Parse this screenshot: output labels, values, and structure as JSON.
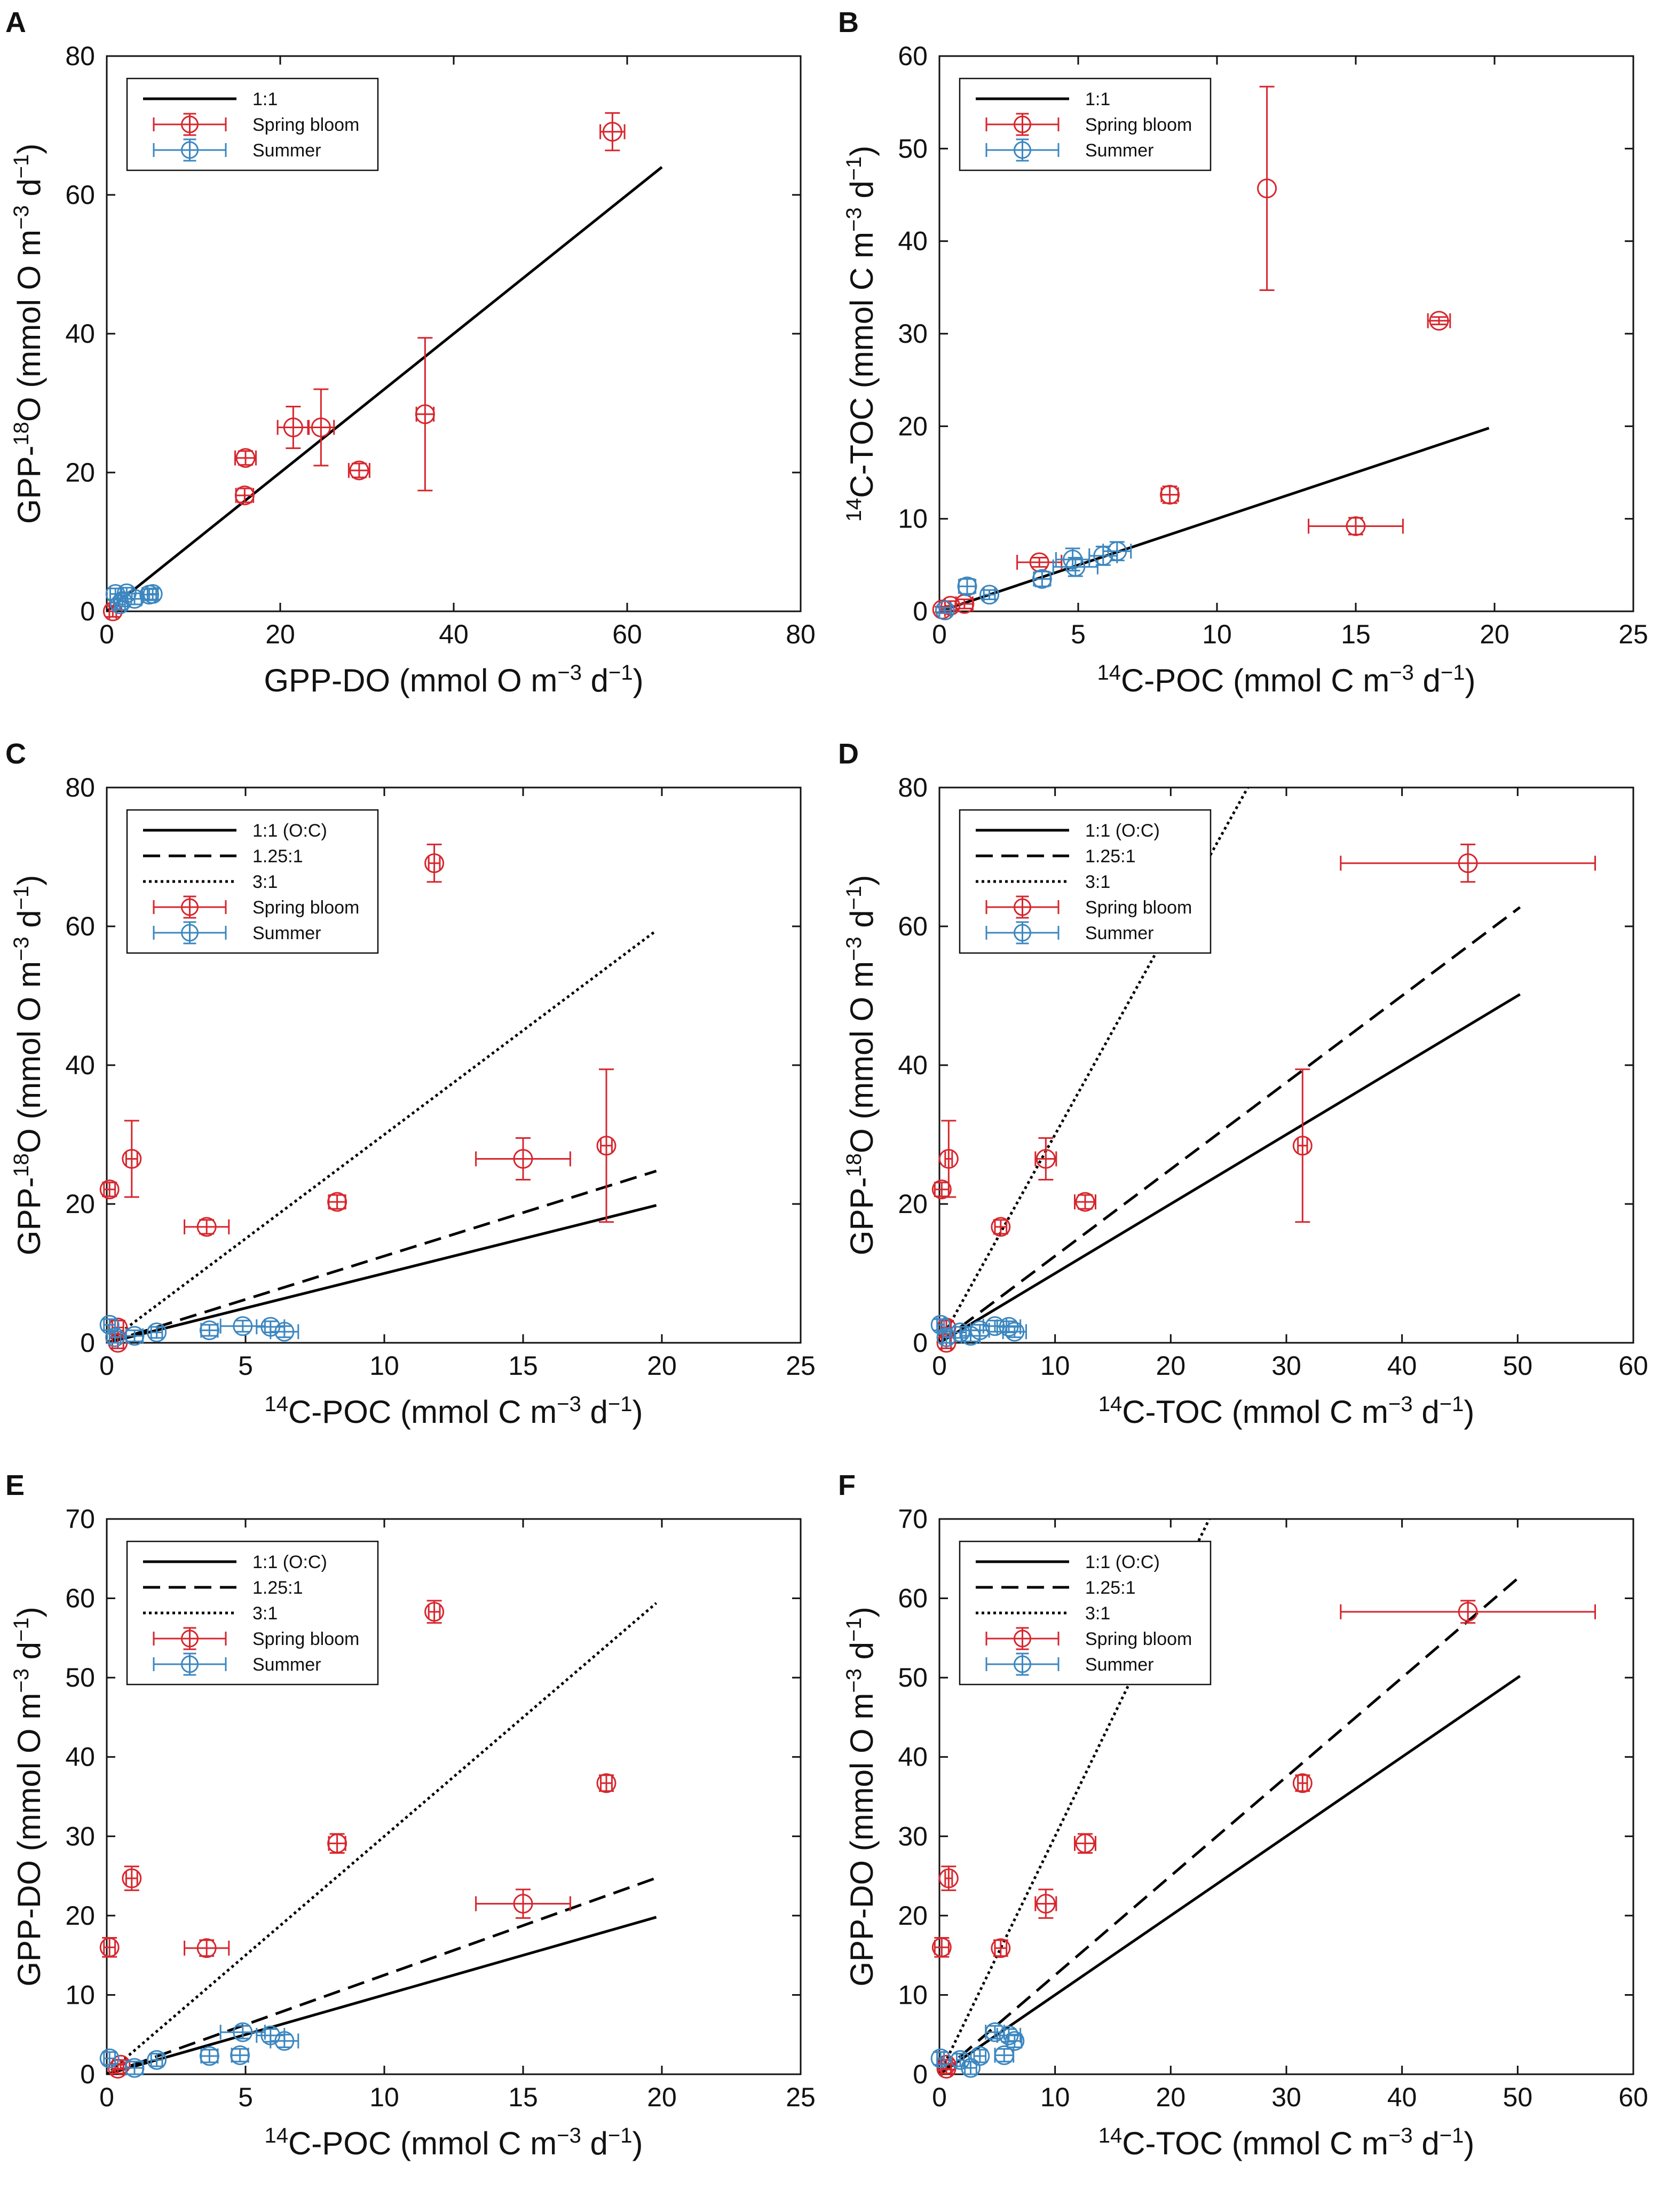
{
  "figure": {
    "colors": {
      "spring": "#d7262d",
      "summer": "#3d87c0",
      "axis": "#111111",
      "line": "#000000"
    }
  },
  "chart_data": [
    {
      "panel": "A",
      "type": "scatter",
      "xlabel": "GPP-DO (mmol O m−3 d−1)",
      "ylabel": "GPP-18O (mmol O m−3 d−1)",
      "xlim": [
        0,
        80
      ],
      "ylim": [
        0,
        80
      ],
      "xticks": [
        0,
        20,
        40,
        60,
        80
      ],
      "yticks": [
        0,
        20,
        40,
        60,
        80
      ],
      "lines": [
        {
          "label": "1:1",
          "style": "solid",
          "slope": 1,
          "x": [
            0,
            64
          ]
        }
      ],
      "legend": [
        "1:1",
        "Spring bloom",
        "Summer"
      ],
      "series": [
        {
          "name": "Spring bloom",
          "points": [
            {
              "x": 58.3,
              "y": 69.1,
              "xerr": 1.4,
              "yerr": 2.7
            },
            {
              "x": 36.7,
              "y": 28.4,
              "xerr": 1.0,
              "yerr": 11.0
            },
            {
              "x": 24.7,
              "y": 26.5,
              "xerr": 1.5,
              "yerr": 5.5
            },
            {
              "x": 21.5,
              "y": 26.5,
              "xerr": 1.8,
              "yerr": 3.0
            },
            {
              "x": 29.1,
              "y": 20.3,
              "xerr": 1.2,
              "yerr": 1.0
            },
            {
              "x": 16.0,
              "y": 22.1,
              "xerr": 1.2,
              "yerr": 1.0
            },
            {
              "x": 15.9,
              "y": 16.7,
              "xerr": 1.0,
              "yerr": 1.0
            },
            {
              "x": 0.7,
              "y": 0.0,
              "xerr": 0.4,
              "yerr": 0.8
            }
          ]
        },
        {
          "name": "Summer",
          "points": [
            {
              "x": 1.0,
              "y": 2.5,
              "xerr": 0.6,
              "yerr": 0.8
            },
            {
              "x": 1.8,
              "y": 1.5,
              "xerr": 0.6,
              "yerr": 0.8
            },
            {
              "x": 2.3,
              "y": 2.6,
              "xerr": 0.6,
              "yerr": 0.8
            },
            {
              "x": 3.2,
              "y": 1.8,
              "xerr": 0.8,
              "yerr": 0.8
            },
            {
              "x": 4.9,
              "y": 2.4,
              "xerr": 0.8,
              "yerr": 0.8
            },
            {
              "x": 5.3,
              "y": 2.5,
              "xerr": 0.6,
              "yerr": 0.8
            },
            {
              "x": 1.5,
              "y": 1.0,
              "xerr": 0.6,
              "yerr": 0.8
            }
          ]
        }
      ]
    },
    {
      "panel": "B",
      "type": "scatter",
      "xlabel": "14C-POC (mmol C m−3 d−1)",
      "ylabel": "14C-TOC (mmol C m−3 d−1)",
      "xlim": [
        0,
        25
      ],
      "ylim": [
        0,
        60
      ],
      "xticks": [
        0,
        5,
        10,
        15,
        20,
        25
      ],
      "yticks": [
        0,
        10,
        20,
        30,
        40,
        50,
        60
      ],
      "lines": [
        {
          "label": "1:1",
          "style": "solid",
          "slope": 1,
          "x": [
            0,
            19.8
          ]
        }
      ],
      "legend": [
        "1:1",
        "Spring bloom",
        "Summer"
      ],
      "series": [
        {
          "name": "Spring bloom",
          "points": [
            {
              "x": 11.8,
              "y": 45.7,
              "xerr": 0,
              "yerr": 11.0
            },
            {
              "x": 18.0,
              "y": 31.4,
              "xerr": 0.4,
              "yerr": 0.4
            },
            {
              "x": 8.3,
              "y": 12.6,
              "xerr": 0.3,
              "yerr": 0.9
            },
            {
              "x": 15.0,
              "y": 9.2,
              "xerr": 1.7,
              "yerr": 0.9
            },
            {
              "x": 3.6,
              "y": 5.3,
              "xerr": 0.8,
              "yerr": 0.5
            },
            {
              "x": 0.9,
              "y": 0.8,
              "xerr": 0.3,
              "yerr": 0.5
            },
            {
              "x": 0.4,
              "y": 0.6,
              "xerr": 0.2,
              "yerr": 0.5
            },
            {
              "x": 0.1,
              "y": 0.2,
              "xerr": 0.1,
              "yerr": 0.3
            }
          ]
        },
        {
          "name": "Summer",
          "points": [
            {
              "x": 6.4,
              "y": 6.5,
              "xerr": 0.5,
              "yerr": 1.0
            },
            {
              "x": 5.9,
              "y": 6.0,
              "xerr": 0.5,
              "yerr": 1.0
            },
            {
              "x": 4.9,
              "y": 4.8,
              "xerr": 0.8,
              "yerr": 1.0
            },
            {
              "x": 4.8,
              "y": 5.6,
              "xerr": 0.6,
              "yerr": 1.2
            },
            {
              "x": 3.7,
              "y": 3.5,
              "xerr": 0.3,
              "yerr": 0.8
            },
            {
              "x": 1.0,
              "y": 2.7,
              "xerr": 0.3,
              "yerr": 0.8
            },
            {
              "x": 1.8,
              "y": 1.8,
              "xerr": 0.2,
              "yerr": 0.5
            },
            {
              "x": 0.2,
              "y": 0.1,
              "xerr": 0.2,
              "yerr": 0.3
            }
          ]
        }
      ]
    },
    {
      "panel": "C",
      "type": "scatter",
      "xlabel": "14C-POC (mmol C m−3 d−1)",
      "ylabel": "GPP-18O (mmol O m−3 d−1)",
      "xlim": [
        0,
        25
      ],
      "ylim": [
        0,
        80
      ],
      "xticks": [
        0,
        5,
        10,
        15,
        20,
        25
      ],
      "yticks": [
        0,
        20,
        40,
        60,
        80
      ],
      "lines": [
        {
          "label": "1:1 (O:C)",
          "style": "solid",
          "slope": 1,
          "x": [
            0,
            19.8
          ]
        },
        {
          "label": "1.25:1",
          "style": "dashed",
          "slope": 1.25,
          "x": [
            0,
            19.8
          ]
        },
        {
          "label": "3:1",
          "style": "dotted",
          "slope": 3,
          "x": [
            0,
            19.8
          ]
        }
      ],
      "legend": [
        "1:1 (O:C)",
        "1.25:1",
        "3:1",
        "Spring bloom",
        "Summer"
      ],
      "series": [
        {
          "name": "Spring bloom",
          "points": [
            {
              "x": 11.8,
              "y": 69.1,
              "xerr": 0.2,
              "yerr": 2.7
            },
            {
              "x": 18.0,
              "y": 28.4,
              "xerr": 0.2,
              "yerr": 11.0
            },
            {
              "x": 15.0,
              "y": 26.5,
              "xerr": 1.7,
              "yerr": 3.0
            },
            {
              "x": 0.9,
              "y": 26.5,
              "xerr": 0.2,
              "yerr": 5.5
            },
            {
              "x": 8.3,
              "y": 20.3,
              "xerr": 0.3,
              "yerr": 1.0
            },
            {
              "x": 0.1,
              "y": 22.1,
              "xerr": 0.2,
              "yerr": 1.0
            },
            {
              "x": 3.6,
              "y": 16.7,
              "xerr": 0.8,
              "yerr": 1.0
            },
            {
              "x": 0.4,
              "y": 0.0,
              "xerr": 0.2,
              "yerr": 0.8
            },
            {
              "x": 0.4,
              "y": 2.2,
              "xerr": 0.2,
              "yerr": 1.0
            }
          ]
        },
        {
          "name": "Summer",
          "points": [
            {
              "x": 4.9,
              "y": 2.4,
              "xerr": 0.8,
              "yerr": 0.8
            },
            {
              "x": 5.9,
              "y": 2.3,
              "xerr": 0.5,
              "yerr": 0.8
            },
            {
              "x": 6.4,
              "y": 1.6,
              "xerr": 0.5,
              "yerr": 0.8
            },
            {
              "x": 3.7,
              "y": 1.8,
              "xerr": 0.3,
              "yerr": 0.8
            },
            {
              "x": 1.8,
              "y": 1.5,
              "xerr": 0.2,
              "yerr": 0.8
            },
            {
              "x": 1.0,
              "y": 1.0,
              "xerr": 0.3,
              "yerr": 0.8
            },
            {
              "x": 0.1,
              "y": 2.6,
              "xerr": 0.2,
              "yerr": 0.8
            },
            {
              "x": 0.3,
              "y": 0.8,
              "xerr": 0.2,
              "yerr": 0.8
            }
          ]
        }
      ]
    },
    {
      "panel": "D",
      "type": "scatter",
      "xlabel": "14C-TOC (mmol C m−3 d−1)",
      "ylabel": "GPP-18O (mmol O m−3 d−1)",
      "xlim": [
        0,
        60
      ],
      "ylim": [
        0,
        80
      ],
      "xticks": [
        0,
        10,
        20,
        30,
        40,
        50,
        60
      ],
      "yticks": [
        0,
        20,
        40,
        60,
        80
      ],
      "lines": [
        {
          "label": "1:1 (O:C)",
          "style": "solid",
          "slope": 1,
          "x": [
            0,
            50.2
          ]
        },
        {
          "label": "1.25:1",
          "style": "dashed",
          "slope": 1.25,
          "x": [
            0,
            50.2
          ]
        },
        {
          "label": "3:1",
          "style": "dotted",
          "slope": 3,
          "x": [
            0,
            50.2
          ]
        }
      ],
      "legend": [
        "1:1 (O:C)",
        "1.25:1",
        "3:1",
        "Spring bloom",
        "Summer"
      ],
      "series": [
        {
          "name": "Spring bloom",
          "points": [
            {
              "x": 45.7,
              "y": 69.1,
              "xerr": 11.0,
              "yerr": 2.7
            },
            {
              "x": 31.4,
              "y": 28.4,
              "xerr": 0.4,
              "yerr": 11.0
            },
            {
              "x": 9.2,
              "y": 26.5,
              "xerr": 0.9,
              "yerr": 3.0
            },
            {
              "x": 0.8,
              "y": 26.5,
              "xerr": 0.3,
              "yerr": 5.5
            },
            {
              "x": 12.6,
              "y": 20.3,
              "xerr": 0.9,
              "yerr": 1.0
            },
            {
              "x": 0.2,
              "y": 22.1,
              "xerr": 0.6,
              "yerr": 1.0
            },
            {
              "x": 5.3,
              "y": 16.7,
              "xerr": 0.5,
              "yerr": 1.0
            },
            {
              "x": 0.6,
              "y": 0.0,
              "xerr": 0.4,
              "yerr": 0.8
            },
            {
              "x": 0.6,
              "y": 2.2,
              "xerr": 0.4,
              "yerr": 1.0
            }
          ]
        },
        {
          "name": "Summer",
          "points": [
            {
              "x": 4.8,
              "y": 2.4,
              "xerr": 1.0,
              "yerr": 0.8
            },
            {
              "x": 6.0,
              "y": 2.3,
              "xerr": 1.0,
              "yerr": 0.8
            },
            {
              "x": 6.5,
              "y": 1.6,
              "xerr": 1.0,
              "yerr": 0.8
            },
            {
              "x": 3.5,
              "y": 1.8,
              "xerr": 0.8,
              "yerr": 0.8
            },
            {
              "x": 2.7,
              "y": 1.0,
              "xerr": 0.8,
              "yerr": 0.8
            },
            {
              "x": 1.8,
              "y": 1.5,
              "xerr": 0.5,
              "yerr": 0.8
            },
            {
              "x": 0.1,
              "y": 2.6,
              "xerr": 0.3,
              "yerr": 0.8
            },
            {
              "x": 0.6,
              "y": 0.8,
              "xerr": 0.3,
              "yerr": 0.8
            }
          ]
        }
      ]
    },
    {
      "panel": "E",
      "type": "scatter",
      "xlabel": "14C-POC (mmol C m−3 d−1)",
      "ylabel": "GPP-DO (mmol O m−3 d−1)",
      "xlim": [
        0,
        25
      ],
      "ylim": [
        0,
        70
      ],
      "xticks": [
        0,
        5,
        10,
        15,
        20,
        25
      ],
      "yticks": [
        0,
        10,
        20,
        30,
        40,
        50,
        60,
        70
      ],
      "lines": [
        {
          "label": "1:1 (O:C)",
          "style": "solid",
          "slope": 1,
          "x": [
            0,
            19.8
          ]
        },
        {
          "label": "1.25:1",
          "style": "dashed",
          "slope": 1.25,
          "x": [
            0,
            19.8
          ]
        },
        {
          "label": "3:1",
          "style": "dotted",
          "slope": 3,
          "x": [
            0,
            19.8
          ]
        }
      ],
      "legend": [
        "1:1 (O:C)",
        "1.25:1",
        "3:1",
        "Spring bloom",
        "Summer"
      ],
      "series": [
        {
          "name": "Spring bloom",
          "points": [
            {
              "x": 11.8,
              "y": 58.3,
              "xerr": 0.2,
              "yerr": 1.4
            },
            {
              "x": 18.0,
              "y": 36.7,
              "xerr": 0.2,
              "yerr": 1.0
            },
            {
              "x": 8.3,
              "y": 29.1,
              "xerr": 0.3,
              "yerr": 1.2
            },
            {
              "x": 0.9,
              "y": 24.7,
              "xerr": 0.2,
              "yerr": 1.5
            },
            {
              "x": 15.0,
              "y": 21.5,
              "xerr": 1.7,
              "yerr": 1.8
            },
            {
              "x": 0.1,
              "y": 16.0,
              "xerr": 0.2,
              "yerr": 1.2
            },
            {
              "x": 3.6,
              "y": 15.9,
              "xerr": 0.8,
              "yerr": 1.0
            },
            {
              "x": 0.4,
              "y": 0.7,
              "xerr": 0.2,
              "yerr": 0.6
            },
            {
              "x": 0.5,
              "y": 1.2,
              "xerr": 0.2,
              "yerr": 0.6
            }
          ]
        },
        {
          "name": "Summer",
          "points": [
            {
              "x": 4.9,
              "y": 5.3,
              "xerr": 0.8,
              "yerr": 0.8
            },
            {
              "x": 5.9,
              "y": 4.9,
              "xerr": 0.5,
              "yerr": 0.8
            },
            {
              "x": 6.4,
              "y": 4.2,
              "xerr": 0.5,
              "yerr": 0.8
            },
            {
              "x": 3.7,
              "y": 2.3,
              "xerr": 0.3,
              "yerr": 0.8
            },
            {
              "x": 4.8,
              "y": 2.4,
              "xerr": 0.3,
              "yerr": 0.8
            },
            {
              "x": 1.8,
              "y": 1.8,
              "xerr": 0.2,
              "yerr": 0.8
            },
            {
              "x": 1.0,
              "y": 0.8,
              "xerr": 0.3,
              "yerr": 0.8
            },
            {
              "x": 0.1,
              "y": 2.0,
              "xerr": 0.2,
              "yerr": 0.8
            }
          ]
        }
      ]
    },
    {
      "panel": "F",
      "type": "scatter",
      "xlabel": "14C-TOC (mmol C m−3 d−1)",
      "ylabel": "GPP-DO (mmol O m−3 d−1)",
      "xlim": [
        0,
        60
      ],
      "ylim": [
        0,
        70
      ],
      "xticks": [
        0,
        10,
        20,
        30,
        40,
        50,
        60
      ],
      "yticks": [
        0,
        10,
        20,
        30,
        40,
        50,
        60,
        70
      ],
      "lines": [
        {
          "label": "1:1 (O:C)",
          "style": "solid",
          "slope": 1,
          "x": [
            0,
            50.2
          ]
        },
        {
          "label": "1.25:1",
          "style": "dashed",
          "slope": 1.25,
          "x": [
            0,
            50.2
          ]
        },
        {
          "label": "3:1",
          "style": "dotted",
          "slope": 3,
          "x": [
            0,
            50.2
          ]
        }
      ],
      "legend": [
        "1:1 (O:C)",
        "1.25:1",
        "3:1",
        "Spring bloom",
        "Summer"
      ],
      "series": [
        {
          "name": "Spring bloom",
          "points": [
            {
              "x": 45.7,
              "y": 58.3,
              "xerr": 11.0,
              "yerr": 1.4
            },
            {
              "x": 31.4,
              "y": 36.7,
              "xerr": 0.4,
              "yerr": 1.0
            },
            {
              "x": 12.6,
              "y": 29.1,
              "xerr": 0.9,
              "yerr": 1.2
            },
            {
              "x": 0.8,
              "y": 24.7,
              "xerr": 0.3,
              "yerr": 1.5
            },
            {
              "x": 9.2,
              "y": 21.5,
              "xerr": 0.9,
              "yerr": 1.8
            },
            {
              "x": 0.2,
              "y": 16.0,
              "xerr": 0.6,
              "yerr": 1.2
            },
            {
              "x": 5.3,
              "y": 15.9,
              "xerr": 0.5,
              "yerr": 1.0
            },
            {
              "x": 0.6,
              "y": 0.7,
              "xerr": 0.4,
              "yerr": 0.6
            },
            {
              "x": 0.6,
              "y": 1.2,
              "xerr": 0.4,
              "yerr": 0.6
            }
          ]
        },
        {
          "name": "Summer",
          "points": [
            {
              "x": 4.8,
              "y": 5.3,
              "xerr": 0.8,
              "yerr": 0.8
            },
            {
              "x": 6.0,
              "y": 4.9,
              "xerr": 1.0,
              "yerr": 0.8
            },
            {
              "x": 6.5,
              "y": 4.2,
              "xerr": 0.6,
              "yerr": 0.8
            },
            {
              "x": 3.5,
              "y": 2.3,
              "xerr": 0.5,
              "yerr": 0.8
            },
            {
              "x": 5.6,
              "y": 2.4,
              "xerr": 0.8,
              "yerr": 0.8
            },
            {
              "x": 2.7,
              "y": 0.8,
              "xerr": 0.5,
              "yerr": 0.8
            },
            {
              "x": 1.8,
              "y": 1.8,
              "xerr": 0.3,
              "yerr": 0.8
            },
            {
              "x": 0.1,
              "y": 2.0,
              "xerr": 0.3,
              "yerr": 0.8
            }
          ]
        }
      ]
    }
  ]
}
